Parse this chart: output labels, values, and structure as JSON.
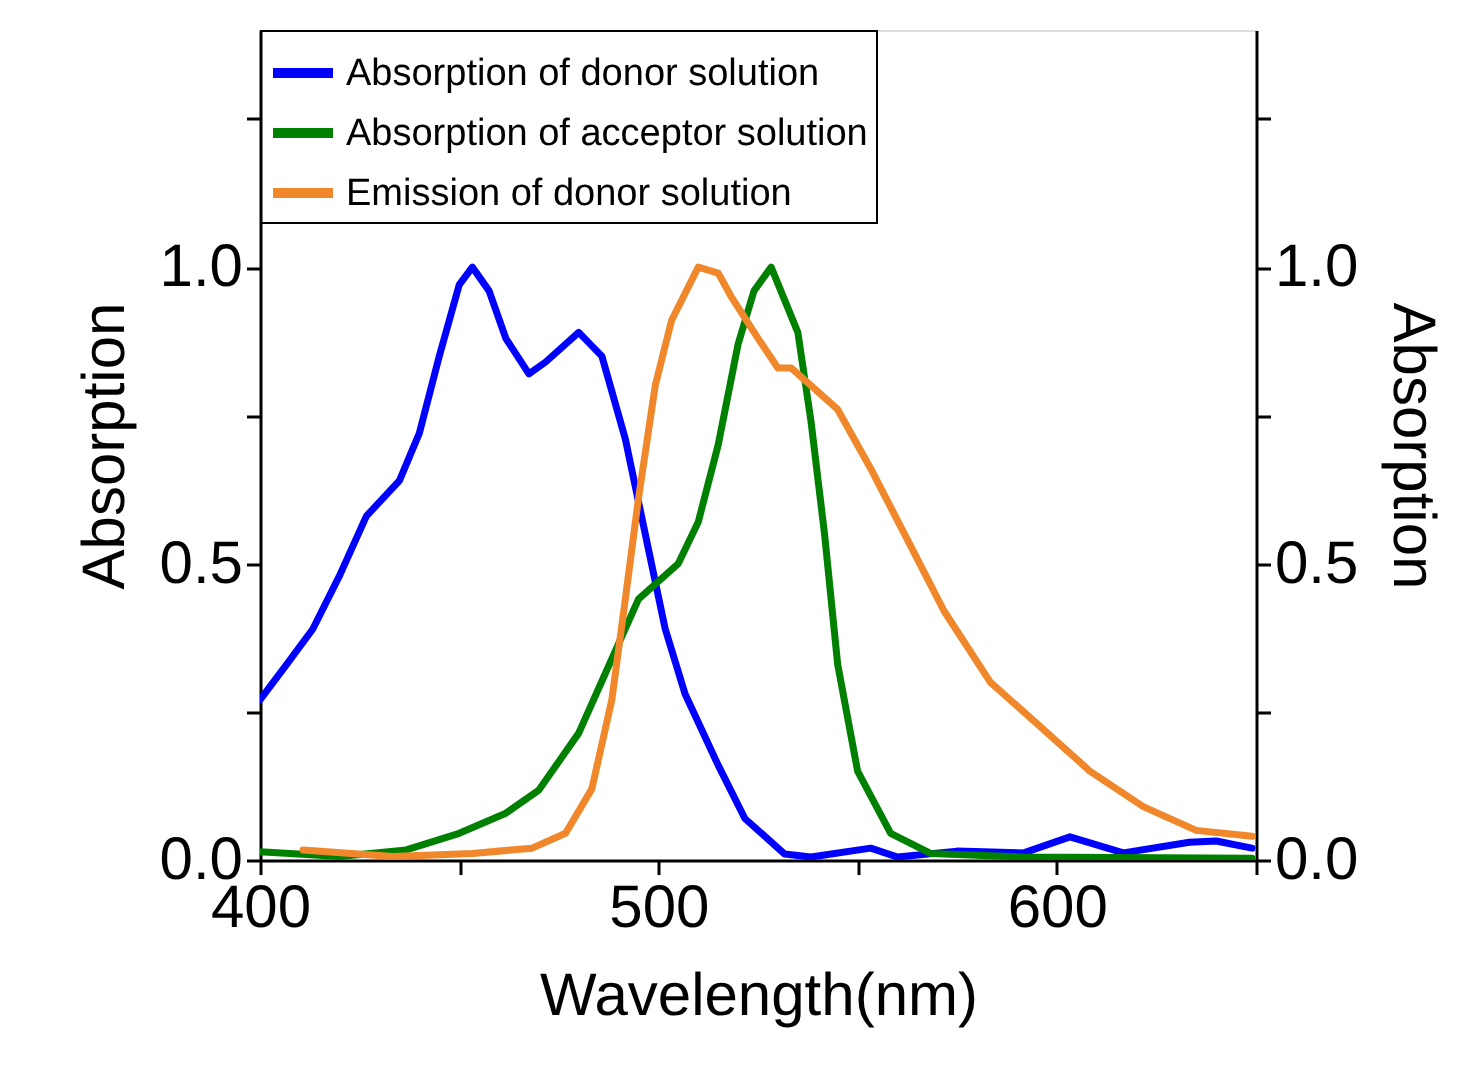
{
  "chart_data": {
    "type": "line",
    "xlabel": "Wavelength(nm)",
    "ylabel": "Absorption",
    "y2label": "Absorption",
    "xlim": [
      400,
      650
    ],
    "xticks": [
      400,
      {
        "value": 450,
        "label": null
      },
      500,
      {
        "value": 550,
        "label": null
      },
      600,
      {
        "value": 650,
        "label": null
      }
    ],
    "ylim": [
      0,
      1.4
    ],
    "yticks": [
      {
        "value": 0,
        "label": "0.0"
      },
      {
        "value": 0.25,
        "label": null
      },
      0.5,
      {
        "value": 0.75,
        "label": null
      },
      {
        "value": 1,
        "label": "1.0"
      },
      {
        "value": 1.25,
        "label": null
      }
    ],
    "y2lim": [
      0,
      1.4
    ],
    "y2ticks": [
      {
        "value": 0,
        "label": "0.0"
      },
      {
        "value": 0.25,
        "label": null
      },
      0.5,
      {
        "value": 0.75,
        "label": null
      },
      {
        "value": 1,
        "label": "1.0"
      },
      {
        "value": 1.25,
        "label": null
      }
    ],
    "legend": "top left",
    "line_style": "solid",
    "series": [
      {
        "name": "Absorption of donor solution",
        "color": "#0000ff",
        "x": [
          400,
          406.7,
          413.3,
          420,
          426.7,
          435,
          440,
          445,
          450,
          453.3,
          457.5,
          461.7,
          467.5,
          471.7,
          480,
          485.8,
          491.7,
          496.7,
          501.7,
          506.7,
          515,
          521.7,
          531.7,
          538.3,
          553.3,
          560,
          575,
          591.7,
          603.3,
          616.7,
          633.3,
          640,
          649
        ],
        "values": [
          0.27,
          0.33,
          0.39,
          0.48,
          0.58,
          0.64,
          0.72,
          0.85,
          0.97,
          1.0,
          0.96,
          0.88,
          0.82,
          0.84,
          0.89,
          0.85,
          0.71,
          0.55,
          0.39,
          0.28,
          0.16,
          0.07,
          0.01,
          0.005,
          0.02,
          0.005,
          0.015,
          0.012,
          0.039,
          0.012,
          0.03,
          0.032,
          0.02
        ]
      },
      {
        "name": "Absorption of acceptor solution",
        "color": "#008000",
        "x": [
          400,
          420,
          436.7,
          450,
          461.7,
          470,
          480,
          486.7,
          495,
          505,
          510,
          515,
          520,
          524,
          528.3,
          535,
          538.3,
          541.7,
          545,
          550,
          558.3,
          568.3,
          591.7,
          649
        ],
        "values": [
          0.014,
          0.006,
          0.017,
          0.045,
          0.079,
          0.118,
          0.214,
          0.315,
          0.44,
          0.5,
          0.57,
          0.7,
          0.87,
          0.96,
          1.0,
          0.89,
          0.74,
          0.55,
          0.33,
          0.15,
          0.045,
          0.011,
          0.005,
          0.003
        ]
      },
      {
        "name": "Emission of donor solution",
        "color": "#f0872a",
        "axis": "y2",
        "x": [
          410.8,
          433.3,
          453.3,
          468.3,
          476.7,
          483.3,
          488.3,
          491.7,
          495,
          499.2,
          503.3,
          510,
          515,
          518.3,
          525,
          530,
          533.3,
          545,
          553.3,
          563.3,
          571.7,
          583.3,
          595,
          608.3,
          621.7,
          635,
          649
        ],
        "values": [
          0.017,
          0.006,
          0.011,
          0.02,
          0.045,
          0.12,
          0.27,
          0.44,
          0.61,
          0.8,
          0.91,
          1.0,
          0.99,
          0.95,
          0.88,
          0.83,
          0.83,
          0.76,
          0.66,
          0.53,
          0.42,
          0.3,
          0.23,
          0.15,
          0.09,
          0.05,
          0.04
        ]
      }
    ]
  }
}
